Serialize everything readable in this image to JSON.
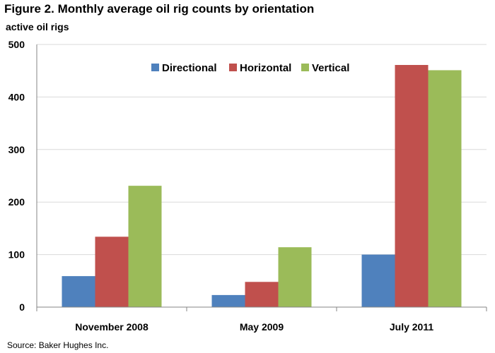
{
  "chart_data": {
    "type": "bar",
    "title": "Figure 2.  Monthly average oil rig counts by orientation",
    "ylabel": "active oil rigs",
    "xlabel": "",
    "categories": [
      "November 2008",
      "May 2009",
      "July 2011"
    ],
    "series": [
      {
        "name": "Directional",
        "values": [
          59,
          23,
          100
        ],
        "color": "#4f81bd"
      },
      {
        "name": "Horizontal",
        "values": [
          134,
          48,
          461
        ],
        "color": "#c0504d"
      },
      {
        "name": "Vertical",
        "values": [
          231,
          114,
          451
        ],
        "color": "#9bbb59"
      }
    ],
    "ylim": [
      0,
      500
    ],
    "yticks": [
      0,
      100,
      200,
      300,
      400,
      500
    ],
    "grid": true,
    "legend_position": "top-center",
    "source": "Source:  Baker Hughes Inc."
  }
}
